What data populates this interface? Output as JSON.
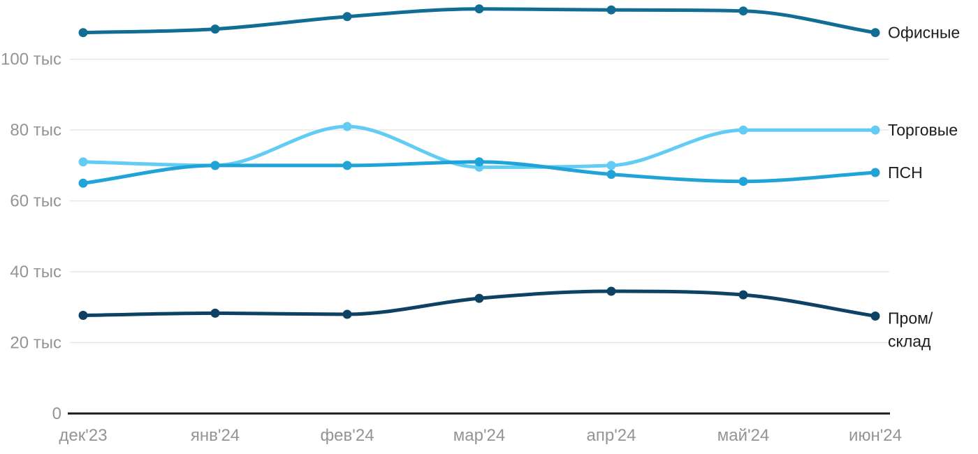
{
  "chart_data": {
    "type": "line",
    "title": "",
    "xlabel": "",
    "ylabel": "",
    "grid": true,
    "legend_position": "right-of-line-ends",
    "ylim": [
      0,
      116.7
    ],
    "x_labels": [
      "дек'23",
      "янв'24",
      "фев'24",
      "мар'24",
      "апр'24",
      "май'24",
      "июн'24"
    ],
    "y_ticks": [
      {
        "value": 0,
        "label": "0"
      },
      {
        "value": 20,
        "label": "20 тыс"
      },
      {
        "value": 40,
        "label": "40 тыс"
      },
      {
        "value": 60,
        "label": "60 тыс"
      },
      {
        "value": 80,
        "label": "80 тыс"
      },
      {
        "value": 100,
        "label": "100 тыс"
      }
    ],
    "series": [
      {
        "name": "Офисные",
        "label_lines": [
          "Офисные"
        ],
        "color": "#126d95",
        "values": [
          107.5,
          108.5,
          112,
          114.2,
          113.9,
          113.6,
          107.5
        ]
      },
      {
        "name": "Торговые",
        "label_lines": [
          "Торговые"
        ],
        "color": "#62ccf5",
        "values": [
          71,
          70,
          81,
          69.5,
          70,
          80,
          80
        ]
      },
      {
        "name": "ПСН",
        "label_lines": [
          "ПСН"
        ],
        "color": "#20a3d6",
        "values": [
          65,
          70,
          70,
          71,
          67.5,
          65.5,
          68
        ]
      },
      {
        "name": "Пром/склад",
        "label_lines": [
          "Пром/",
          "склад"
        ],
        "color": "#0e4264",
        "values": [
          27.7,
          28.3,
          28,
          32.5,
          34.5,
          33.5,
          27.5
        ]
      }
    ]
  },
  "style": {
    "background": "#ffffff",
    "grid_color": "#e7e7e7",
    "axis_color": "#1a1a1a",
    "tick_label_color": "#949494",
    "legend_label_color": "#1d1d1d"
  }
}
